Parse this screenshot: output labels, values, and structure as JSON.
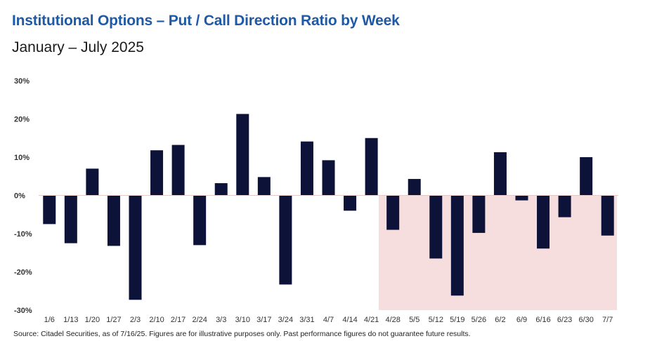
{
  "title": "Institutional Options – Put / Call Direction Ratio by Week",
  "subtitle": "January – July 2025",
  "source": "Source: Citadel Securities, as of 7/16/25. Figures are for illustrative purposes only. Past performance figures do not guarantee future results.",
  "colors": {
    "bar": "#0d1338",
    "shade": "#f6dede",
    "title": "#1f5aa6"
  },
  "chart_data": {
    "type": "bar",
    "title": "Institutional Options – Put / Call Direction Ratio by Week",
    "subtitle": "January – July 2025",
    "xlabel": "",
    "ylabel": "",
    "ylim": [
      -30,
      30
    ],
    "yticks": [
      30,
      20,
      10,
      0,
      -10,
      -20,
      -30
    ],
    "ytick_labels": [
      "30%",
      "20%",
      "10%",
      "0%",
      "-10%",
      "-20%",
      "-30%"
    ],
    "grid": false,
    "categories": [
      "1/6",
      "1/13",
      "1/20",
      "1/27",
      "2/3",
      "2/10",
      "2/17",
      "2/24",
      "3/3",
      "3/10",
      "3/17",
      "3/24",
      "3/31",
      "4/7",
      "4/14",
      "4/21",
      "4/28",
      "5/5",
      "5/12",
      "5/19",
      "5/26",
      "6/2",
      "6/9",
      "6/16",
      "6/23",
      "6/30",
      "7/7"
    ],
    "series": [
      {
        "name": "Put / Call Direction Ratio (%)",
        "values": [
          -7.5,
          -12.5,
          7,
          -13.2,
          -27.3,
          11.8,
          13.2,
          -13,
          3.2,
          21.3,
          4.8,
          -23.3,
          14.1,
          9.2,
          -4,
          15,
          -9,
          4.3,
          -16.5,
          -26.2,
          -9.8,
          11.3,
          -1.3,
          -13.9,
          -5.7,
          10,
          -10.5
        ]
      }
    ],
    "highlight_range": {
      "from": "4/28",
      "to": "7/7"
    }
  }
}
